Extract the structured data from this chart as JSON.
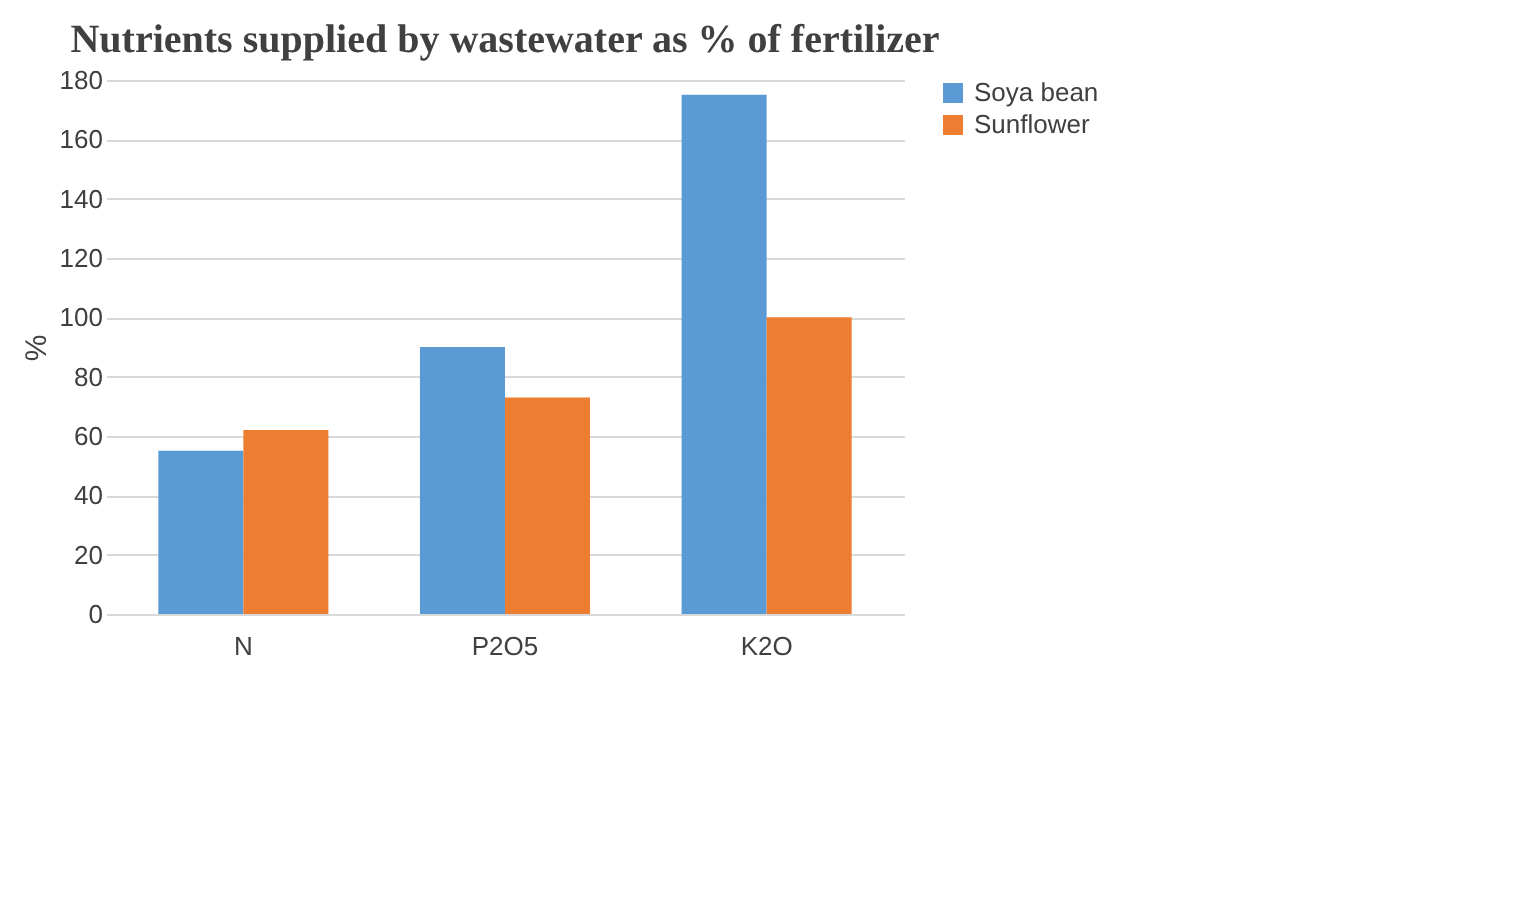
{
  "chart_data": {
    "type": "bar",
    "title": "Nutrients supplied by wastewater as % of fertilizer",
    "ylabel": "%",
    "categories": [
      "N",
      "P2O5",
      "K2O"
    ],
    "series": [
      {
        "name": "Soya bean",
        "color": "#5b9bd5",
        "values": [
          55,
          90,
          175
        ]
      },
      {
        "name": "Sunflower",
        "color": "#ed7d31",
        "values": [
          62,
          73,
          100
        ]
      }
    ],
    "ylim": [
      0,
      180
    ],
    "yticks": [
      0,
      20,
      40,
      60,
      80,
      100,
      120,
      140,
      160,
      180
    ],
    "grid": "y",
    "legend": "right"
  }
}
